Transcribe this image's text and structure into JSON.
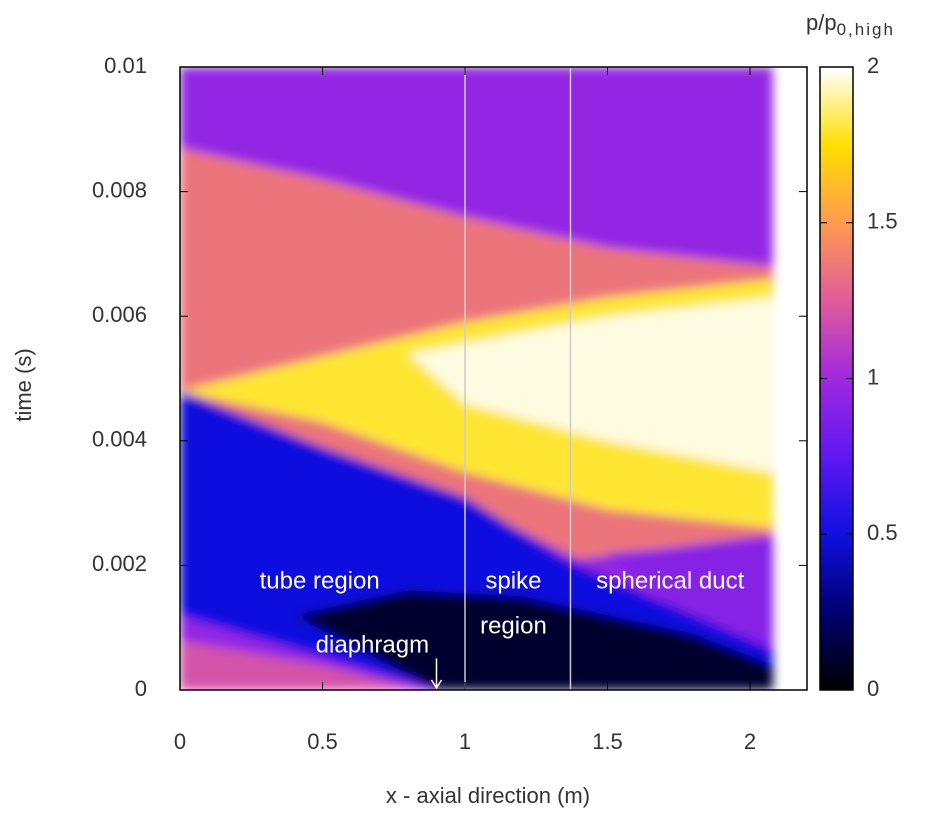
{
  "chart_data": {
    "type": "heatmap",
    "xlabel": "x - axial direction (m)",
    "ylabel": "time (s)",
    "colorbar_label": "p/p",
    "colorbar_label_sub": "0,high",
    "xlim": [
      0,
      2.2
    ],
    "ylim": [
      0,
      0.01
    ],
    "xticks": [
      0,
      0.5,
      1,
      1.5,
      2
    ],
    "yticks": [
      0,
      0.002,
      0.004,
      0.006,
      0.008,
      0.01
    ],
    "cblim": [
      0,
      2
    ],
    "cbticks": [
      0,
      0.5,
      1,
      1.5,
      2
    ],
    "colormap": [
      "#000000",
      "#000070",
      "#1010e0",
      "#6018f0",
      "#a028e0",
      "#e05c9a",
      "#ff9a50",
      "#ffe000",
      "#ffffff"
    ],
    "vlines": [
      1,
      1.37
    ],
    "regions": [
      {
        "value": 0.95,
        "points": [
          [
            0,
            0
          ],
          [
            0,
            0.01
          ],
          [
            2.08,
            0.01
          ],
          [
            2.08,
            0
          ]
        ]
      },
      {
        "value": 1.35,
        "points": [
          [
            0,
            0.0048
          ],
          [
            0,
            0.0087
          ],
          [
            0.5,
            0.0082
          ],
          [
            1,
            0.0076
          ],
          [
            1.5,
            0.0071
          ],
          [
            2.08,
            0.0068
          ],
          [
            2.08,
            0.0025
          ],
          [
            1.4,
            0.0021
          ],
          [
            1,
            0.003
          ],
          [
            0.5,
            0.0039
          ]
        ]
      },
      {
        "value": 1.8,
        "points": [
          [
            0,
            0.0048
          ],
          [
            1,
            0.0059
          ],
          [
            1.5,
            0.0063
          ],
          [
            2.08,
            0.0066
          ],
          [
            2.08,
            0.0026
          ],
          [
            1.5,
            0.0029
          ],
          [
            1,
            0.0035
          ],
          [
            0.5,
            0.0043
          ]
        ]
      },
      {
        "value": 1.97,
        "points": [
          [
            0.8,
            0.0054
          ],
          [
            1.5,
            0.006
          ],
          [
            2.08,
            0.0063
          ],
          [
            2.08,
            0.0035
          ],
          [
            1.5,
            0.004
          ],
          [
            1,
            0.0046
          ]
        ]
      },
      {
        "value": 0.9,
        "points": [
          [
            1.5,
            0.0022
          ],
          [
            2.08,
            0.0024
          ],
          [
            2.08,
            0.0007
          ],
          [
            1.8,
            0.0011
          ]
        ]
      },
      {
        "value": 0.5,
        "points": [
          [
            0,
            0.0012
          ],
          [
            0,
            0.0048
          ],
          [
            0.5,
            0.0039
          ],
          [
            1,
            0.0031
          ],
          [
            1.35,
            0.0021
          ],
          [
            2.08,
            0.00065
          ],
          [
            2.08,
            0
          ],
          [
            0.9,
            0
          ]
        ]
      },
      {
        "value": 0.1,
        "points": [
          [
            0.9,
            0
          ],
          [
            0.4,
            0.0012
          ],
          [
            0.8,
            0.0016
          ],
          [
            1.2,
            0.0015
          ],
          [
            1.8,
            0.0009
          ],
          [
            2.08,
            0.0004
          ],
          [
            2.08,
            0
          ]
        ]
      },
      {
        "value": 1.2,
        "points": [
          [
            0,
            0
          ],
          [
            0,
            0.0008
          ],
          [
            0.5,
            0.0004
          ],
          [
            0.85,
            0
          ]
        ]
      }
    ],
    "annotations": [
      {
        "text": "tube region",
        "x": 0.49,
        "y": 0.00173
      },
      {
        "text": "spike",
        "x": 1.17,
        "y": 0.00173
      },
      {
        "text": "region",
        "x": 1.17,
        "y": 0.00101
      },
      {
        "text": "spherical duct",
        "x": 1.72,
        "y": 0.00173
      },
      {
        "text": "diaphragm",
        "x": 0.675,
        "y": 0.0007,
        "arrow_x": 0.9
      }
    ]
  }
}
